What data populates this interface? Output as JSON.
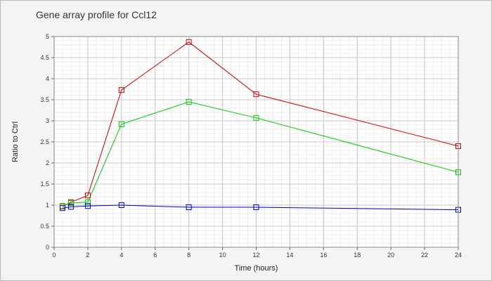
{
  "chart_data": {
    "type": "line",
    "title": "Gene array profile for Ccl12",
    "xlabel": "Time (hours)",
    "ylabel": "Ratio to Ctrl",
    "xlim": [
      0,
      24
    ],
    "ylim": [
      0,
      5
    ],
    "xticks": [
      0,
      2,
      4,
      6,
      8,
      10,
      12,
      14,
      16,
      18,
      20,
      22,
      24
    ],
    "yticks": [
      0,
      0.5,
      1,
      1.5,
      2,
      2.5,
      3,
      3.5,
      4,
      4.5,
      5
    ],
    "xtick_labels": [
      "0",
      "2",
      "4",
      "6",
      "8",
      "10",
      "12",
      "14",
      "16",
      "18",
      "20",
      "22",
      "24"
    ],
    "ytick_labels": [
      "0",
      "0.5",
      "1",
      "1.5",
      "2",
      "2.5",
      "3",
      "3.5",
      "4",
      "4.5",
      "5"
    ],
    "grid": true,
    "marker": "square",
    "series": [
      {
        "color": "#cc0000",
        "x": [
          0.5,
          1,
          2,
          4,
          8,
          12,
          24
        ],
        "y": [
          0.97,
          1.07,
          1.23,
          3.73,
          4.87,
          3.63,
          2.4
        ]
      },
      {
        "color": "#00cc00",
        "x": [
          0.5,
          1,
          2,
          4,
          8,
          12,
          24
        ],
        "y": [
          0.98,
          1.05,
          1.07,
          2.92,
          3.45,
          3.07,
          1.78
        ]
      },
      {
        "color": "#0000cc",
        "x": [
          0.5,
          1,
          2,
          4,
          8,
          12,
          24
        ],
        "y": [
          0.93,
          0.96,
          0.98,
          1.0,
          0.95,
          0.95,
          0.89
        ]
      }
    ]
  }
}
